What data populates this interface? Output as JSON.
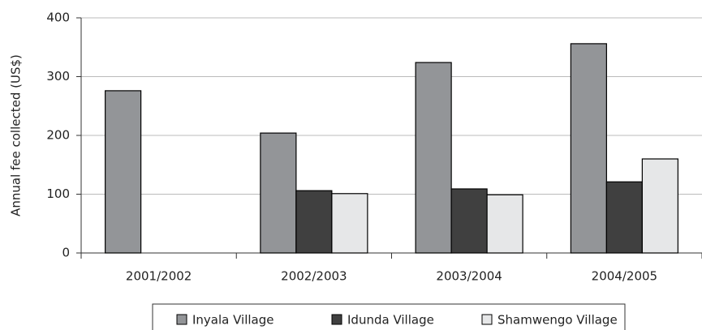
{
  "chart_data": {
    "type": "bar",
    "y_label": "Annual fee collected (US$)",
    "categories": [
      "2001/2002",
      "2002/2003",
      "2003/2004",
      "2004/2005"
    ],
    "series": [
      {
        "name": "Inyala Village",
        "color": "#939598",
        "values": [
          276,
          204,
          324,
          356
        ]
      },
      {
        "name": "Idunda Village",
        "color": "#404040",
        "values": [
          null,
          106,
          109,
          121
        ]
      },
      {
        "name": "Shamwengo Village",
        "color": "#e6e7e8",
        "values": [
          null,
          101,
          99,
          160
        ]
      }
    ],
    "ylim": [
      0,
      400
    ],
    "yticks": [
      0,
      100,
      200,
      300,
      400
    ],
    "grid": true,
    "legend": "bottom"
  }
}
